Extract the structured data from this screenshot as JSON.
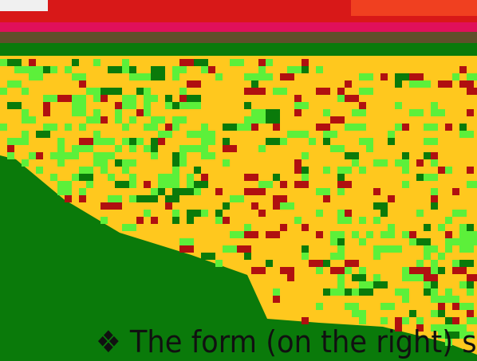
{
  "slide": {
    "bullet_text": "❖ The form (on the right) sh"
  }
}
